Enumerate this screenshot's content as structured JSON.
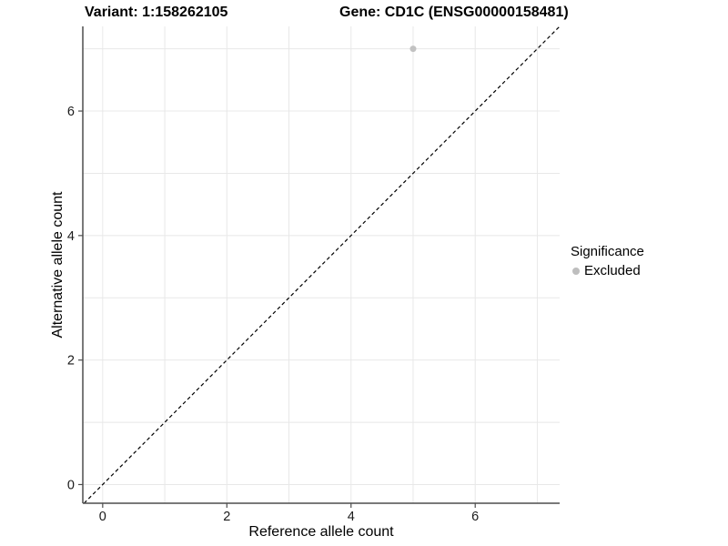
{
  "titles": {
    "variant": "Variant: 1:158262105",
    "gene": "Gene: CD1C (ENSG00000158481)"
  },
  "axes": {
    "x_label": "Reference allele count",
    "y_label": "Alternative allele count"
  },
  "legend": {
    "title": "Significance",
    "items": [
      {
        "label": "Excluded",
        "color": "#bebebe"
      }
    ]
  },
  "chart_data": {
    "type": "scatter",
    "title_left": "Variant: 1:158262105",
    "title_right": "Gene: CD1C (ENSG00000158481)",
    "xlabel": "Reference allele count",
    "ylabel": "Alternative allele count",
    "xlim": [
      -0.32,
      7.36
    ],
    "ylim": [
      -0.3,
      7.36
    ],
    "grid_breaks": [
      0,
      1,
      2,
      3,
      4,
      5,
      6,
      7
    ],
    "tick_breaks": [
      0,
      2,
      4,
      6
    ],
    "tick_labels": [
      "0",
      "2",
      "4",
      "6"
    ],
    "grid_on": true,
    "points": [
      {
        "x": 5,
        "y": 7,
        "series": "Excluded",
        "color": "#c2c2c2"
      }
    ],
    "reference_line": {
      "type": "identity_y_equals_x",
      "style": "dashed",
      "color": "#000000"
    },
    "legend_position": "right",
    "colors": {
      "point": "#c2c2c2",
      "grid": "#e8e8e8",
      "axis": "#4d4d4d",
      "tick_text": "#1a1a1a",
      "diagonal": "#000000"
    }
  }
}
